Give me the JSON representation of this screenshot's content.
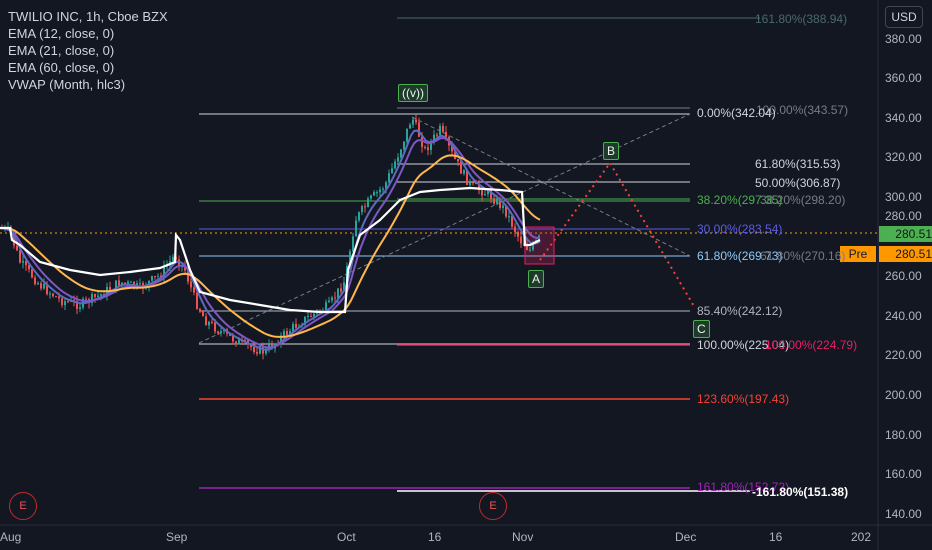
{
  "header": {
    "symbol_line": "TWILIO INC, 1h, Cboe BZX",
    "indicators": [
      "EMA (12, close, 0)",
      "EMA (21, close, 0)",
      "EMA (60, close, 0)",
      "VWAP (Month, hlc3)"
    ]
  },
  "currency": "USD",
  "price_tags": {
    "last": "280.51",
    "pre_label": "Pre",
    "pre_value": "280.51"
  },
  "y_axis": [
    "380.00",
    "360.00",
    "340.00",
    "320.00",
    "300.00",
    "280.00",
    "260.00",
    "240.00",
    "220.00",
    "200.00",
    "180.00",
    "160.00",
    "140.00"
  ],
  "x_axis": [
    "Aug",
    "Sep",
    "Oct",
    "16",
    "Nov",
    "Dec",
    "16",
    "202"
  ],
  "wave_labels": {
    "v": "((v))",
    "a": "A",
    "b": "B",
    "c": "C"
  },
  "fib_labels": {
    "top_ext": "161.80%(388.94)",
    "r100": "100.00%(343.57)",
    "r0": "0.00%(342.04)",
    "r618": "61.80%(315.53)",
    "r50": "50.00%(306.87)",
    "r382": "38.20%(297.35)",
    "r382b": "38.20%(298.20)",
    "r30": "30.00%(283.54)",
    "r618b": "61.80%(269.73)",
    "r618c": "61.80%(270.16)",
    "r854": "85.40%(242.12)",
    "r100b": "100.00%(225.04)",
    "r100c": "100.00%(224.79)",
    "r1236": "123.60%(197.43)",
    "r1618": "161.80%(152.72)",
    "r1618b": "-161.80%(151.38)"
  },
  "earnings_marker": "E",
  "colors": {
    "background": "#131722",
    "bull": "#26a69a",
    "bear": "#ef5350",
    "ema12": "#5c6bc0",
    "ema21": "#7e57c2",
    "ema60": "#ffb74d",
    "vwap": "#ffffff"
  }
}
